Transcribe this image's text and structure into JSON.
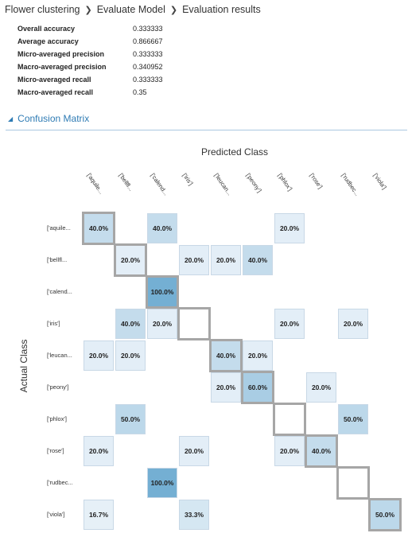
{
  "breadcrumb": {
    "items": [
      "Flower clustering",
      "Evaluate Model",
      "Evaluation results"
    ]
  },
  "metrics": [
    {
      "label": "Overall accuracy",
      "value": "0.333333"
    },
    {
      "label": "Average accuracy",
      "value": "0.866667"
    },
    {
      "label": "Micro-averaged precision",
      "value": "0.333333"
    },
    {
      "label": "Macro-averaged precision",
      "value": "0.340952"
    },
    {
      "label": "Micro-averaged recall",
      "value": "0.333333"
    },
    {
      "label": "Macro-averaged recall",
      "value": "0.35"
    }
  ],
  "section": {
    "title": "Confusion Matrix",
    "icon": "collapse-triangle-icon"
  },
  "matrix": {
    "predicted_title": "Predicted Class",
    "actual_title": "Actual Class",
    "col_labels": [
      "['aquile...",
      "['bellfl...",
      "['calend...",
      "['iris']",
      "['leucan...",
      "['peony']",
      "['phlox']",
      "['rose']",
      "['rudbec...",
      "['viola']"
    ],
    "row_labels": [
      "['aquile...",
      "['bellfl...",
      "['calend...",
      "['iris']",
      "['leucan...",
      "['peony']",
      "['phlox']",
      "['rose']",
      "['rudbec...",
      "['viola']"
    ],
    "cells": [
      [
        "40.0%",
        "",
        "40.0%",
        "",
        "",
        "",
        "20.0%",
        "",
        "",
        ""
      ],
      [
        "",
        "20.0%",
        "",
        "20.0%",
        "20.0%",
        "40.0%",
        "",
        "",
        "",
        ""
      ],
      [
        "",
        "",
        "100.0%",
        "",
        "",
        "",
        "",
        "",
        "",
        ""
      ],
      [
        "",
        "40.0%",
        "20.0%",
        "",
        "",
        "",
        "20.0%",
        "",
        "20.0%",
        ""
      ],
      [
        "20.0%",
        "20.0%",
        "",
        "",
        "40.0%",
        "20.0%",
        "",
        "",
        "",
        ""
      ],
      [
        "",
        "",
        "",
        "",
        "20.0%",
        "60.0%",
        "",
        "20.0%",
        "",
        ""
      ],
      [
        "",
        "50.0%",
        "",
        "",
        "",
        "",
        "",
        "",
        "50.0%",
        ""
      ],
      [
        "20.0%",
        "",
        "",
        "20.0%",
        "",
        "",
        "20.0%",
        "40.0%",
        "",
        ""
      ],
      [
        "",
        "",
        "100.0%",
        "",
        "",
        "",
        "",
        "",
        "",
        ""
      ],
      [
        "16.7%",
        "",
        "",
        "33.3%",
        "",
        "",
        "",
        "",
        "",
        "50.0%"
      ]
    ],
    "colors": {
      "level_16": "#e6f0f7",
      "level_20": "#e3eef7",
      "level_33": "#d5e7f2",
      "level_40": "#c4dcec",
      "level_50": "#bcd8ea",
      "level_60": "#a9cde4",
      "level_100": "#74afd3",
      "diagonal_border": "#a6a6a6"
    }
  }
}
